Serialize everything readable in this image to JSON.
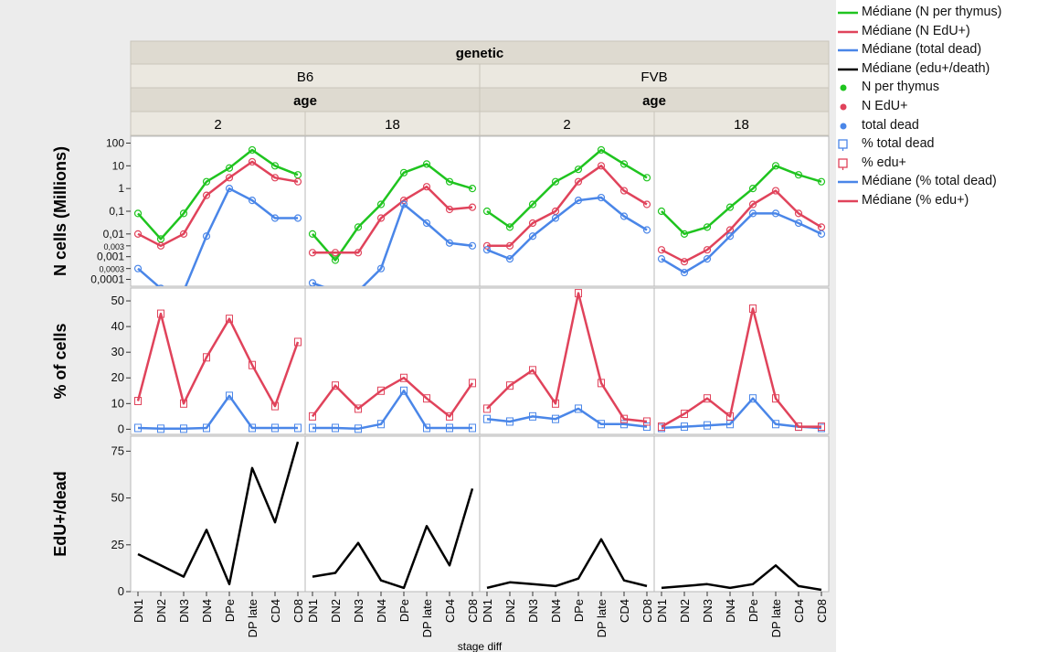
{
  "colors": {
    "green": "#1fc41f",
    "red": "#e0435b",
    "blue": "#4a86e8",
    "black": "#000000",
    "header_bg": "#dedad0",
    "panel_bg": "#ffffff",
    "outer_bg": "#ececec"
  },
  "facets": {
    "genetic_title": "genetic",
    "genetics": [
      "B6",
      "FVB"
    ],
    "age_title": "age",
    "ages": [
      "2",
      "18"
    ]
  },
  "legend": [
    {
      "label": "Médiane (N per thymus)",
      "kind": "line",
      "color": "#1fc41f"
    },
    {
      "label": "Médiane (N EdU+)",
      "kind": "line",
      "color": "#e0435b"
    },
    {
      "label": "Médiane (total dead)",
      "kind": "line",
      "color": "#4a86e8"
    },
    {
      "label": "Médiane (edu+/death)",
      "kind": "line",
      "color": "#000000"
    },
    {
      "label": "N per thymus",
      "kind": "dot",
      "color": "#1fc41f"
    },
    {
      "label": "N EdU+",
      "kind": "dot",
      "color": "#e0435b"
    },
    {
      "label": "total dead",
      "kind": "dot",
      "color": "#4a86e8"
    },
    {
      "label": "% total  dead",
      "kind": "box",
      "color": "#4a86e8"
    },
    {
      "label": "% edu+",
      "kind": "box",
      "color": "#e0435b"
    },
    {
      "label": "Médiane (% total  dead)",
      "kind": "line",
      "color": "#4a86e8"
    },
    {
      "label": "Médiane (% edu+)",
      "kind": "line",
      "color": "#e0435b"
    }
  ],
  "chart_data": {
    "type": "line",
    "x_title": "stage diff",
    "categories": [
      "DN1",
      "DN2",
      "DN3",
      "DN4",
      "DPe",
      "DP late",
      "CD4",
      "CD8"
    ],
    "rows": [
      {
        "ylabel": "N cells (Millions)",
        "scale": "log",
        "ylim": [
          5e-05,
          200
        ],
        "ticks": [
          "100",
          "10",
          "1",
          "0,1",
          "0,01",
          "0,003",
          "0,001",
          "0,0003",
          "0,0001"
        ],
        "tick_values": [
          100,
          10,
          1,
          0.1,
          0.01,
          0.003,
          0.001,
          0.0003,
          0.0001
        ]
      },
      {
        "ylabel": "% of cells",
        "scale": "linear",
        "ylim": [
          -2,
          55
        ],
        "ticks": [
          "50",
          "40",
          "30",
          "20",
          "10",
          "0"
        ],
        "tick_values": [
          50,
          40,
          30,
          20,
          10,
          0
        ]
      },
      {
        "ylabel": "EdU+/dead",
        "scale": "linear",
        "ylim": [
          0,
          83
        ],
        "ticks": [
          "75",
          "50",
          "25",
          "0"
        ],
        "tick_values": [
          75,
          50,
          25,
          0
        ]
      }
    ],
    "panels": [
      {
        "genetic": "B6",
        "age": "2",
        "n_per_thymus": [
          0.08,
          0.006,
          0.08,
          2,
          8,
          50,
          10,
          4
        ],
        "n_edu": [
          0.01,
          0.003,
          0.01,
          0.5,
          3,
          15,
          3,
          2
        ],
        "total_dead": [
          0.0003,
          4e-05,
          3e-05,
          0.008,
          1,
          0.3,
          0.05,
          0.05
        ],
        "pct_dead": [
          0.5,
          0.2,
          0.2,
          0.5,
          13,
          0.5,
          0.5,
          0.5
        ],
        "pct_edu": [
          11,
          45,
          10,
          28,
          43,
          25,
          9,
          34
        ],
        "edu_per_dead": [
          20,
          14,
          8,
          33,
          4,
          66,
          37,
          80
        ]
      },
      {
        "genetic": "B6",
        "age": "18",
        "n_per_thymus": [
          0.01,
          0.0007,
          0.02,
          0.2,
          5,
          12,
          2,
          1
        ],
        "n_edu": [
          0.0015,
          0.0015,
          0.0015,
          0.05,
          0.3,
          1.2,
          0.12,
          0.15
        ],
        "total_dead": [
          7e-05,
          3e-05,
          3e-05,
          0.0003,
          0.2,
          0.03,
          0.004,
          0.003
        ],
        "pct_dead": [
          0.5,
          0.5,
          0.2,
          2,
          15,
          0.5,
          0.5,
          0.5
        ],
        "pct_edu": [
          5,
          17,
          8,
          15,
          20,
          12,
          5,
          18
        ],
        "edu_per_dead": [
          8,
          10,
          26,
          6,
          2,
          35,
          14,
          55
        ]
      },
      {
        "genetic": "FVB",
        "age": "2",
        "n_per_thymus": [
          0.1,
          0.02,
          0.2,
          2,
          7,
          50,
          12,
          3
        ],
        "n_edu": [
          0.003,
          0.003,
          0.03,
          0.1,
          2,
          10,
          0.8,
          0.2
        ],
        "total_dead": [
          0.002,
          0.0008,
          0.008,
          0.05,
          0.3,
          0.4,
          0.06,
          0.015
        ],
        "pct_dead": [
          4,
          3,
          5,
          4,
          8,
          2,
          2,
          1
        ],
        "pct_edu": [
          8,
          17,
          23,
          10,
          53,
          18,
          4,
          3
        ],
        "edu_per_dead": [
          2,
          5,
          4,
          3,
          7,
          28,
          6,
          3
        ]
      },
      {
        "genetic": "FVB",
        "age": "18",
        "n_per_thymus": [
          0.1,
          0.01,
          0.02,
          0.15,
          1,
          10,
          4,
          2
        ],
        "n_edu": [
          0.002,
          0.0006,
          0.002,
          0.015,
          0.2,
          0.8,
          0.08,
          0.02
        ],
        "total_dead": [
          0.0008,
          0.0002,
          0.0008,
          0.008,
          0.08,
          0.08,
          0.03,
          0.01
        ],
        "pct_dead": [
          0.5,
          1,
          1.5,
          2,
          12,
          2,
          1,
          0.5
        ],
        "pct_edu": [
          1,
          6,
          12,
          5,
          47,
          12,
          1,
          1
        ],
        "edu_per_dead": [
          2,
          3,
          4,
          2,
          4,
          14,
          3,
          1
        ]
      }
    ]
  }
}
